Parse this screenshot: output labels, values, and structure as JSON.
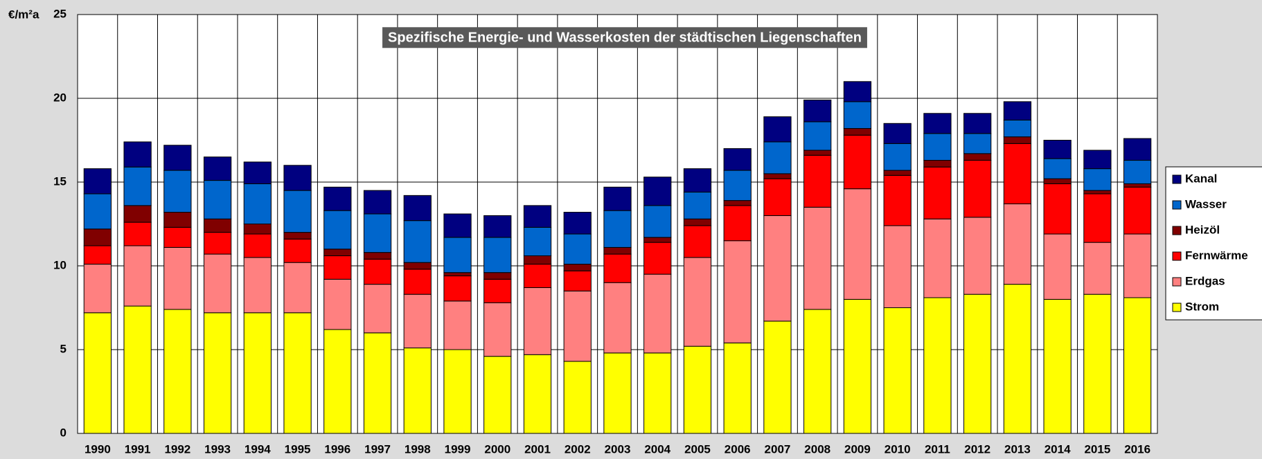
{
  "chart_data": {
    "type": "stacked_bar",
    "title": "Spezifische Energie- und Wasserkosten der städtischen Liegenschaften",
    "y_label": "€/m²a",
    "categories": [
      "1990",
      "1991",
      "1992",
      "1993",
      "1994",
      "1995",
      "1996",
      "1997",
      "1998",
      "1999",
      "2000",
      "2001",
      "2002",
      "2003",
      "2004",
      "2005",
      "2006",
      "2007",
      "2008",
      "2009",
      "2010",
      "2011",
      "2012",
      "2013",
      "2014",
      "2015",
      "2016"
    ],
    "series": [
      {
        "name": "Strom",
        "color": "#ffff00",
        "values": [
          7.2,
          7.6,
          7.4,
          7.2,
          7.2,
          7.2,
          6.2,
          6.0,
          5.1,
          5.0,
          4.6,
          4.7,
          4.3,
          4.8,
          4.8,
          5.2,
          5.4,
          6.7,
          7.4,
          8.0,
          7.5,
          8.1,
          8.3,
          8.9,
          8.0,
          8.3,
          8.1
        ]
      },
      {
        "name": "Erdgas",
        "color": "#ff8080",
        "values": [
          2.9,
          3.6,
          3.7,
          3.5,
          3.3,
          3.0,
          3.0,
          2.9,
          3.2,
          2.9,
          3.2,
          4.0,
          4.2,
          4.2,
          4.7,
          5.3,
          6.1,
          6.3,
          6.1,
          6.6,
          4.9,
          4.7,
          4.6,
          4.8,
          3.9,
          3.1,
          3.8
        ]
      },
      {
        "name": "Fernwärme",
        "color": "#ff0000",
        "values": [
          1.1,
          1.4,
          1.2,
          1.3,
          1.4,
          1.4,
          1.4,
          1.5,
          1.5,
          1.5,
          1.4,
          1.4,
          1.2,
          1.7,
          1.9,
          1.9,
          2.1,
          2.2,
          3.1,
          3.2,
          3.0,
          3.1,
          3.4,
          3.6,
          3.0,
          2.9,
          2.8
        ]
      },
      {
        "name": "Heizöl",
        "color": "#800000",
        "values": [
          1.0,
          1.0,
          0.9,
          0.8,
          0.6,
          0.4,
          0.4,
          0.4,
          0.4,
          0.2,
          0.4,
          0.5,
          0.4,
          0.4,
          0.3,
          0.4,
          0.3,
          0.3,
          0.3,
          0.4,
          0.3,
          0.4,
          0.4,
          0.4,
          0.3,
          0.2,
          0.2
        ]
      },
      {
        "name": "Wasser",
        "color": "#0066cc",
        "values": [
          2.1,
          2.3,
          2.5,
          2.3,
          2.4,
          2.5,
          2.3,
          2.3,
          2.5,
          2.1,
          2.1,
          1.7,
          1.8,
          2.2,
          1.9,
          1.6,
          1.8,
          1.9,
          1.7,
          1.6,
          1.6,
          1.6,
          1.2,
          1.0,
          1.2,
          1.3,
          1.4
        ]
      },
      {
        "name": "Kanal",
        "color": "#000080",
        "values": [
          1.5,
          1.5,
          1.5,
          1.4,
          1.3,
          1.5,
          1.4,
          1.4,
          1.5,
          1.4,
          1.3,
          1.3,
          1.3,
          1.4,
          1.7,
          1.4,
          1.3,
          1.5,
          1.3,
          1.2,
          1.2,
          1.2,
          1.2,
          1.1,
          1.1,
          1.1,
          1.3
        ]
      }
    ],
    "ylim": [
      0,
      25
    ],
    "yticks": [
      0,
      5,
      10,
      15,
      20,
      25
    ],
    "grid": true,
    "legend": "right"
  }
}
